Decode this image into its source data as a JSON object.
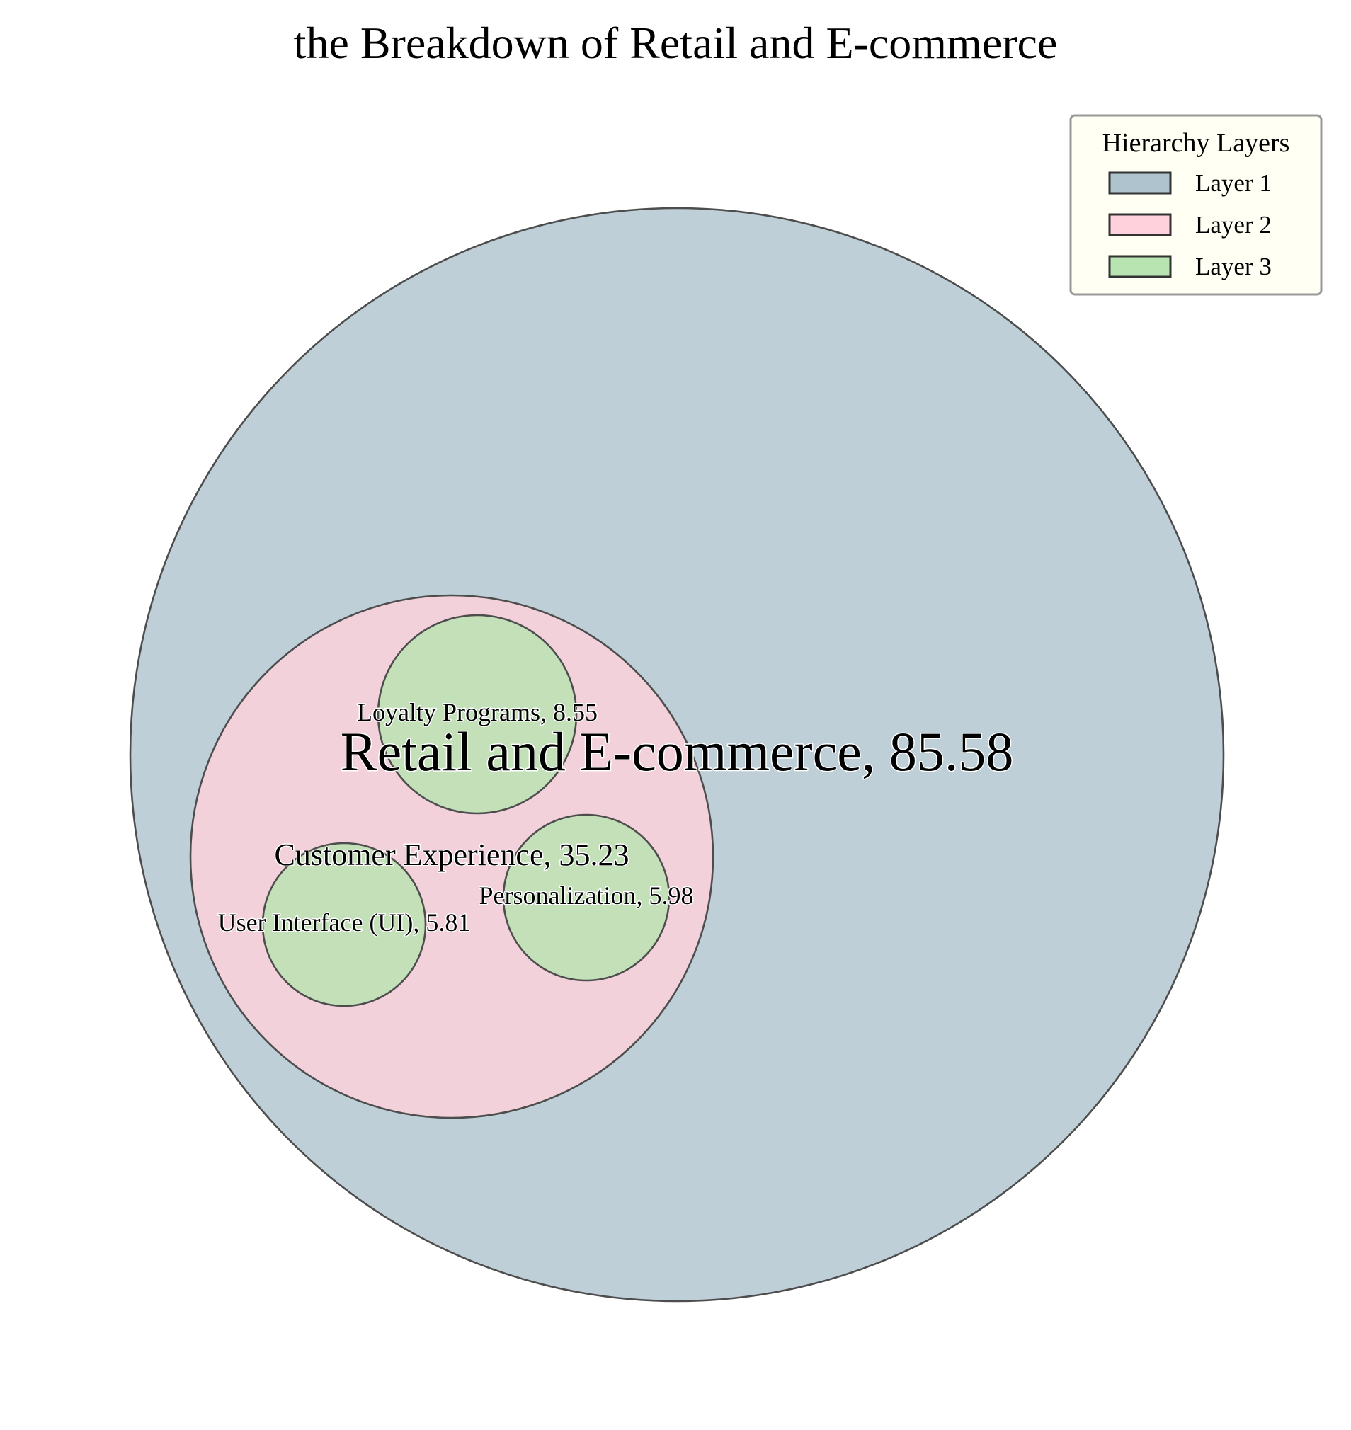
{
  "chart_data": {
    "type": "circle-packing",
    "title": "the Breakdown of Retail and E-commerce",
    "legend": {
      "title": "Hierarchy Layers",
      "placement": "top-right",
      "items": [
        {
          "label": "Layer 1",
          "color": "#aec3cd"
        },
        {
          "label": "Layer 2",
          "color": "#ffd1dc"
        },
        {
          "label": "Layer 3",
          "color": "#b7e4b0"
        }
      ]
    },
    "nodes": [
      {
        "name": "Retail and E-commerce",
        "value": 85.58,
        "layer": 1,
        "label": "Retail and E-commerce, 85.58"
      },
      {
        "name": "Customer Experience",
        "value": 35.23,
        "layer": 2,
        "parent": "Retail and E-commerce",
        "label": "Customer Experience, 35.23"
      },
      {
        "name": "Loyalty Programs",
        "value": 8.55,
        "layer": 3,
        "parent": "Customer Experience",
        "label": "Loyalty Programs, 8.55"
      },
      {
        "name": "Personalization",
        "value": 5.98,
        "layer": 3,
        "parent": "Customer Experience",
        "label": "Personalization, 5.98"
      },
      {
        "name": "User Interface (UI)",
        "value": 5.81,
        "layer": 3,
        "parent": "Customer Experience",
        "label": "User Interface (UI), 5.81"
      }
    ]
  }
}
